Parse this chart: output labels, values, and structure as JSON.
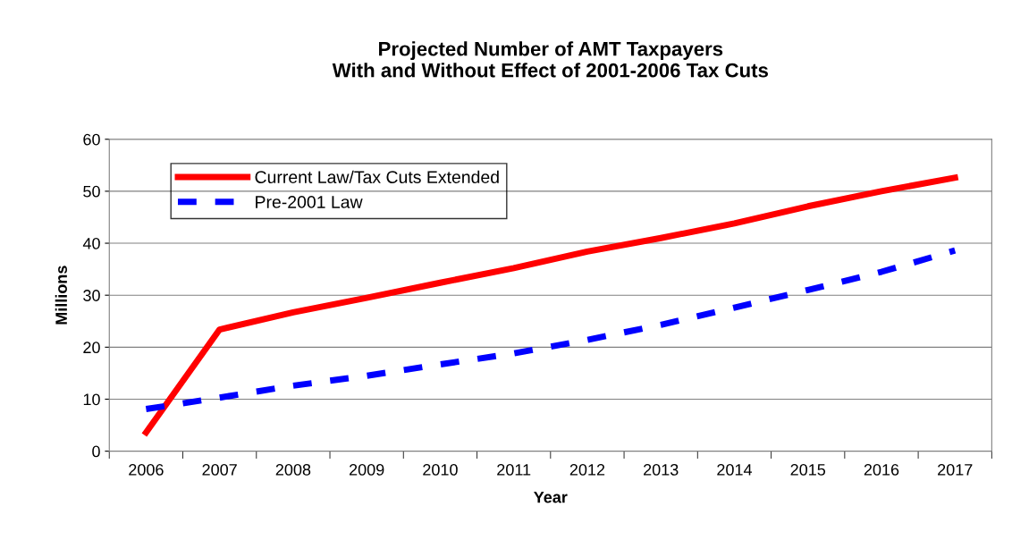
{
  "chart_data": {
    "type": "line",
    "title": "Projected Number of AMT Taxpayers\nWith and Without Effect of 2001-2006 Tax Cuts",
    "xlabel": "Year",
    "ylabel": "Millions",
    "categories": [
      "2006",
      "2007",
      "2008",
      "2009",
      "2010",
      "2011",
      "2012",
      "2013",
      "2014",
      "2015",
      "2016",
      "2017"
    ],
    "series": [
      {
        "name": "Current Law/Tax Cuts Extended",
        "color": "#ff0000",
        "line_style": "solid",
        "values": [
          3.6,
          23.4,
          26.7,
          29.5,
          32.4,
          35.2,
          38.4,
          41.0,
          43.8,
          47.1,
          50.0,
          52.6
        ]
      },
      {
        "name": "Pre-2001 Law",
        "color": "#0000ff",
        "line_style": "dashed",
        "values": [
          8.1,
          10.3,
          12.6,
          14.5,
          16.7,
          18.8,
          21.4,
          24.3,
          27.6,
          31.0,
          34.5,
          38.6
        ]
      }
    ],
    "ylim": [
      0,
      60
    ],
    "yticks": [
      0,
      10,
      20,
      30,
      40,
      50,
      60
    ],
    "grid": "y",
    "legend": "top left",
    "marker": "none"
  }
}
